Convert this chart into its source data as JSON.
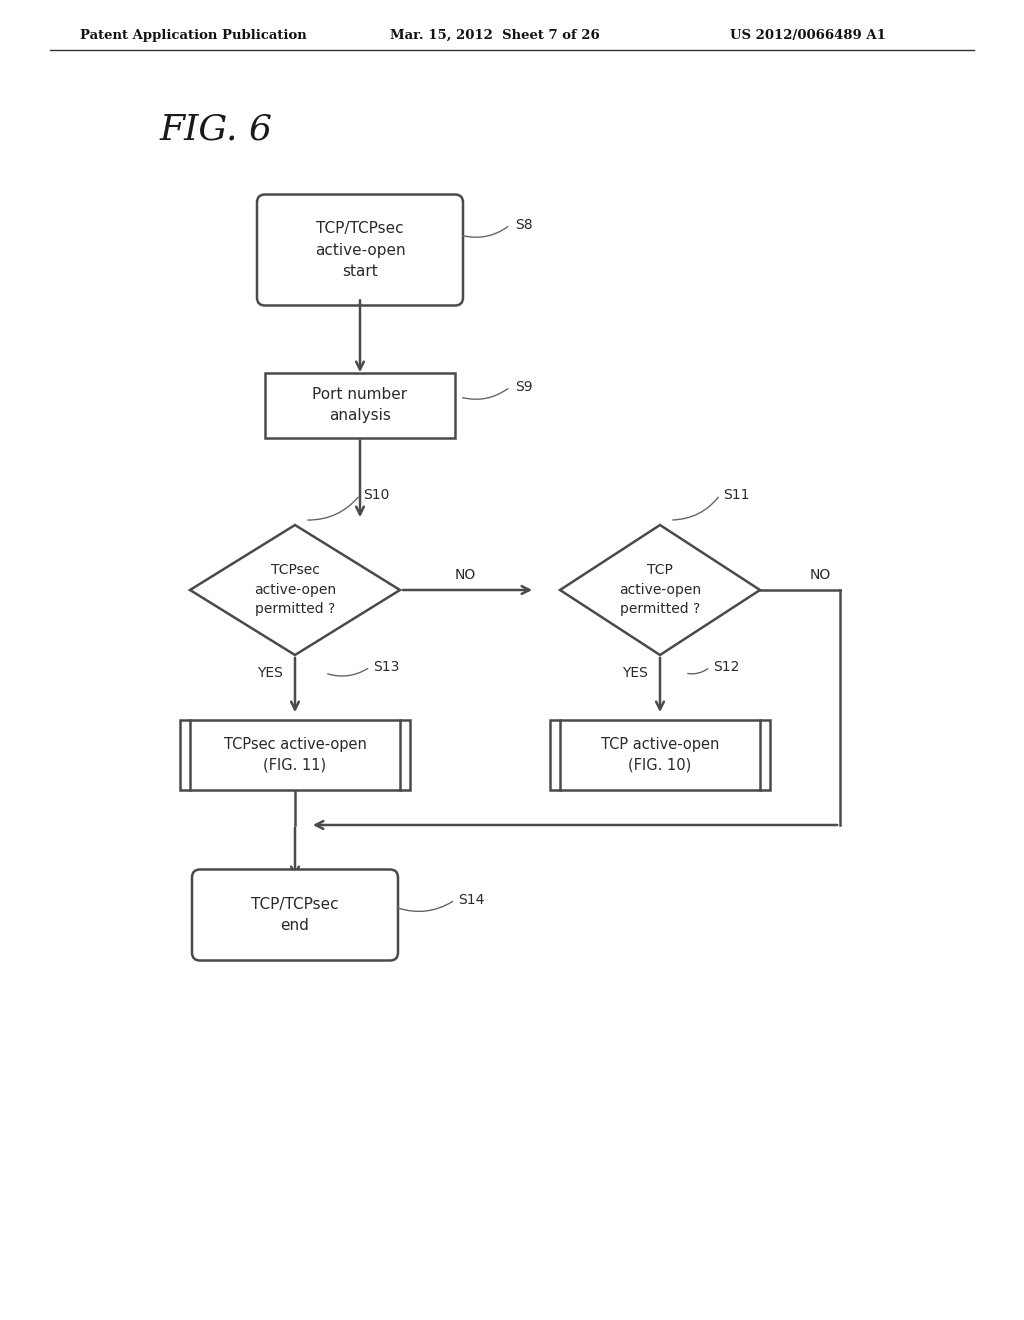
{
  "bg_color": "#ffffff",
  "text_color": "#2a2a2a",
  "line_color": "#4a4a4a",
  "header_left": "Patent Application Publication",
  "header_center": "Mar. 15, 2012  Sheet 7 of 26",
  "header_right": "US 2012/0066489 A1",
  "fig_label": "FIG. 6",
  "start_text": "TCP/TCPsec\nactive-open\nstart",
  "port_text": "Port number\nanalysis",
  "d1_text": "TCPsec\nactive-open\npermitted ?",
  "d2_text": "TCP\nactive-open\npermitted ?",
  "box1_text": "TCPsec active-open\n(FIG. 11)",
  "box2_text": "TCP active-open\n(FIG. 10)",
  "end_text": "TCP/TCPsec\nend",
  "s8": "S8",
  "s9": "S9",
  "s10": "S10",
  "s11": "S11",
  "s12": "S12",
  "s13": "S13",
  "s14": "S14",
  "yes": "YES",
  "no": "NO"
}
